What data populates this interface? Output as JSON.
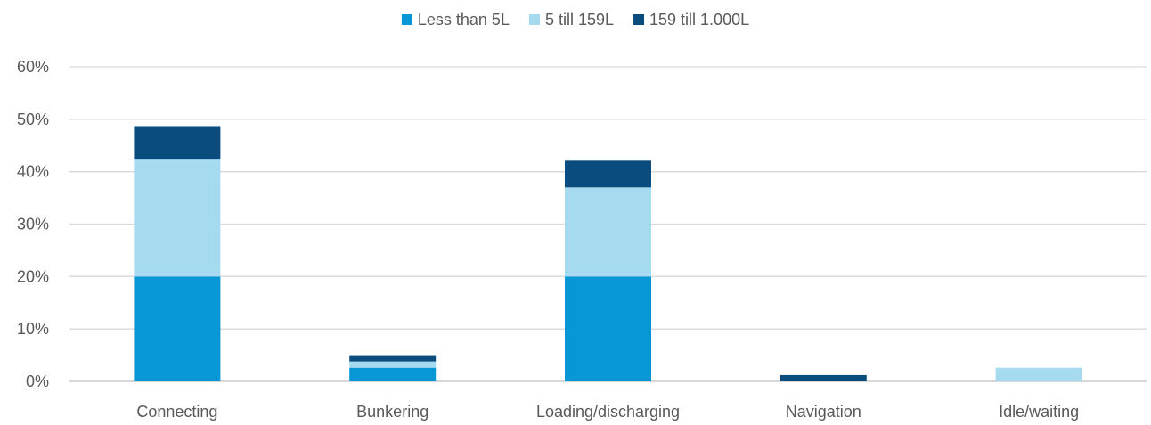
{
  "chart_data": {
    "type": "bar",
    "stacked": true,
    "categories": [
      "Connecting",
      "Bunkering",
      "Loading/discharging",
      "Navigation",
      "Idle/waiting"
    ],
    "series": [
      {
        "name": "Less than 5L",
        "color": "#0796D6",
        "values": [
          20,
          2.6,
          20,
          0,
          0
        ]
      },
      {
        "name": "5 till 159L",
        "color": "#A6DAEE",
        "values": [
          22.3,
          1.2,
          17,
          0,
          2.6
        ]
      },
      {
        "name": "159 till 1.000L",
        "color": "#0A4C7D",
        "values": [
          6.4,
          1.2,
          5.1,
          1.2,
          0
        ]
      }
    ],
    "y_ticks": [
      "0%",
      "10%",
      "20%",
      "30%",
      "40%",
      "50%",
      "60%"
    ],
    "ylim": [
      0,
      60
    ],
    "grid": true,
    "legend_position": "top-center",
    "title": "",
    "xlabel": "",
    "ylabel": ""
  }
}
